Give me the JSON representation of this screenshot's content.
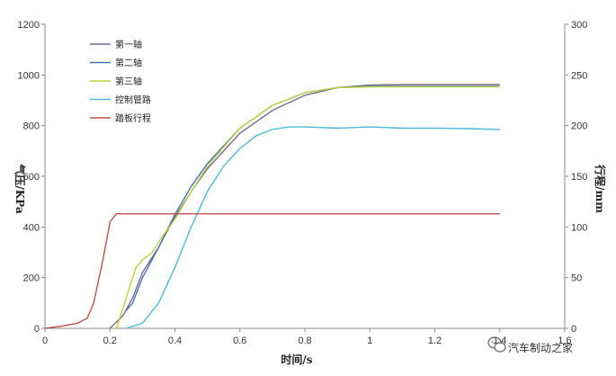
{
  "chart_data": {
    "type": "line",
    "xlabel": "时间/s",
    "ylabel": "气压/KPa",
    "y2label": "行程/mm",
    "xlim": [
      0,
      1.6
    ],
    "ylim": [
      0,
      1200
    ],
    "y2lim": [
      0,
      300
    ],
    "x_ticks": [
      "0",
      "0.2",
      "0.4",
      "0.6",
      "0.8",
      "1",
      "1.2",
      "1.4",
      "1.6"
    ],
    "y_ticks": [
      "0",
      "200",
      "400",
      "600",
      "800",
      "1000",
      "1200"
    ],
    "y2_ticks": [
      "0",
      "50",
      "100",
      "150",
      "200",
      "250",
      "300"
    ],
    "legend_position": "top-left",
    "grid": false,
    "series": [
      {
        "name": "第一轴",
        "axis": "left",
        "color": "#7a6a8c",
        "x": [
          0.2,
          0.24,
          0.27,
          0.3,
          0.35,
          0.4,
          0.45,
          0.5,
          0.6,
          0.7,
          0.8,
          0.9,
          1.0,
          1.1,
          1.2,
          1.3,
          1.4
        ],
        "y": [
          0,
          50,
          120,
          220,
          320,
          440,
          540,
          630,
          770,
          860,
          920,
          950,
          960,
          962,
          962,
          962,
          962
        ]
      },
      {
        "name": "第二轴",
        "axis": "left",
        "color": "#4a72b8",
        "x": [
          0.25,
          0.27,
          0.3,
          0.35,
          0.4,
          0.45,
          0.5,
          0.6,
          0.7,
          0.8,
          0.9,
          1.0,
          1.1,
          1.2,
          1.3,
          1.4
        ],
        "y": [
          70,
          100,
          200,
          320,
          450,
          560,
          650,
          790,
          880,
          930,
          950,
          955,
          955,
          955,
          955,
          955
        ]
      },
      {
        "name": "第三轴",
        "axis": "left",
        "color": "#b8d43a",
        "x": [
          0.22,
          0.25,
          0.28,
          0.3,
          0.33,
          0.36,
          0.4,
          0.45,
          0.5,
          0.6,
          0.7,
          0.8,
          0.9,
          1.0,
          1.1,
          1.2,
          1.3,
          1.4
        ],
        "y": [
          0,
          120,
          240,
          270,
          300,
          360,
          430,
          540,
          640,
          790,
          880,
          930,
          950,
          953,
          953,
          953,
          953,
          953
        ]
      },
      {
        "name": "控制管路",
        "axis": "left",
        "color": "#4db8d8",
        "x": [
          0.25,
          0.3,
          0.35,
          0.4,
          0.45,
          0.5,
          0.55,
          0.6,
          0.65,
          0.7,
          0.75,
          0.8,
          0.9,
          1.0,
          1.1,
          1.2,
          1.3,
          1.4
        ],
        "y": [
          0,
          20,
          100,
          240,
          400,
          540,
          640,
          710,
          760,
          785,
          795,
          795,
          790,
          795,
          790,
          790,
          788,
          785
        ]
      },
      {
        "name": "踏板行程",
        "axis": "right",
        "color": "#c0504d",
        "x": [
          0,
          0.05,
          0.1,
          0.13,
          0.15,
          0.18,
          0.2,
          0.22,
          0.25,
          0.3,
          0.4,
          0.5,
          0.6,
          0.8,
          1.0,
          1.2,
          1.4
        ],
        "y": [
          0,
          2,
          5,
          10,
          25,
          70,
          105,
          113,
          113,
          113,
          113,
          113,
          113,
          113,
          113,
          113,
          113
        ]
      }
    ]
  },
  "watermark": {
    "text": "汽车制动之家",
    "icon": "wechat-icon"
  }
}
